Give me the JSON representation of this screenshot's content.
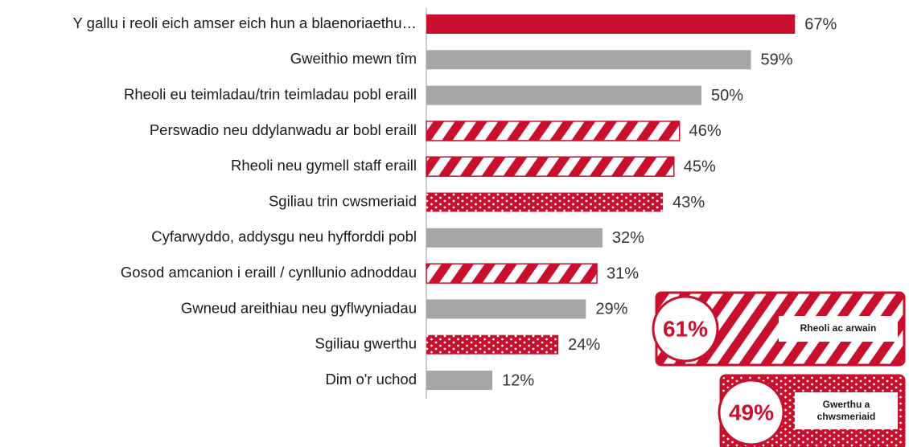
{
  "chart_data": {
    "type": "bar",
    "categories": [
      "Y gallu i reoli eich amser eich hun a blaenoriaethu…",
      "Gweithio mewn tîm",
      "Rheoli eu teimladau/trin teimladau pobl eraill",
      "Perswadio neu ddylanwadu ar bobl eraill",
      "Rheoli neu gymell staff eraill",
      "Sgiliau trin cwsmeriaid",
      "Cyfarwyddo, addysgu neu hyfforddi pobl",
      "Gosod amcanion i eraill / cynllunio adnoddau",
      "Gwneud areithiau neu gyflwyniadau",
      "Sgiliau gwerthu",
      "Dim o'r uchod"
    ],
    "values": [
      67,
      59,
      50,
      46,
      45,
      43,
      32,
      31,
      29,
      24,
      12
    ],
    "value_labels": [
      "67%",
      "59%",
      "50%",
      "46%",
      "45%",
      "43%",
      "32%",
      "31%",
      "29%",
      "24%",
      "12%"
    ],
    "styles": [
      "solid",
      "gray",
      "gray",
      "hatch",
      "hatch",
      "dots",
      "gray",
      "hatch",
      "gray",
      "dots",
      "gray"
    ],
    "color": "#c8102e",
    "gray_color": "#a6a6a6",
    "xlim": [
      0,
      100
    ],
    "annotations": [
      {
        "label": "61%",
        "text": "Rheoli ac arwain",
        "style": "hatch"
      },
      {
        "label": "49%",
        "text": "Gwerthu a chwsmeriaid",
        "style": "dots"
      }
    ]
  }
}
